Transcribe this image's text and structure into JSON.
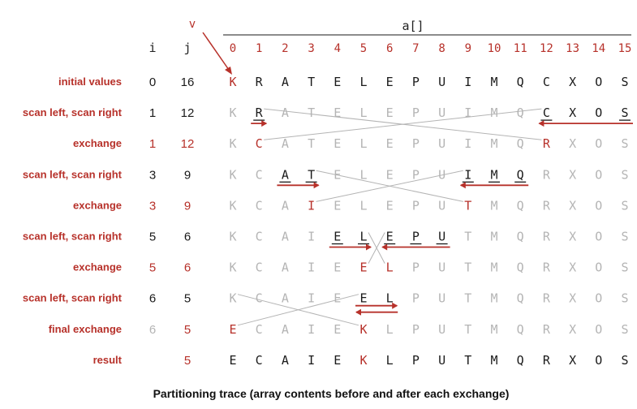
{
  "header": {
    "array_name": "a[]",
    "v_label": "v",
    "i_label": "i",
    "j_label": "j",
    "indices": [
      "0",
      "1",
      "2",
      "3",
      "4",
      "5",
      "6",
      "7",
      "8",
      "9",
      "10",
      "11",
      "12",
      "13",
      "14",
      "15"
    ]
  },
  "rows": [
    {
      "label": "initial values",
      "i": "0",
      "j": "16",
      "ij_color": "black",
      "cells": [
        "K",
        "R",
        "A",
        "T",
        "E",
        "L",
        "E",
        "P",
        "U",
        "I",
        "M",
        "Q",
        "C",
        "X",
        "O",
        "S"
      ],
      "styles": [
        "r",
        "b",
        "b",
        "b",
        "b",
        "b",
        "b",
        "b",
        "b",
        "b",
        "b",
        "b",
        "b",
        "b",
        "b",
        "b"
      ]
    },
    {
      "label": "scan left, scan right",
      "i": "1",
      "j": "12",
      "ij_color": "black",
      "cells": [
        "K",
        "R",
        "A",
        "T",
        "E",
        "L",
        "E",
        "P",
        "U",
        "I",
        "M",
        "Q",
        "C",
        "X",
        "O",
        "S"
      ],
      "styles": [
        "g",
        "bu",
        "g",
        "g",
        "g",
        "g",
        "g",
        "g",
        "g",
        "g",
        "g",
        "g",
        "bu",
        "b",
        "b",
        "bu"
      ]
    },
    {
      "label": "exchange",
      "i": "1",
      "j": "12",
      "ij_color": "red",
      "cells": [
        "K",
        "C",
        "A",
        "T",
        "E",
        "L",
        "E",
        "P",
        "U",
        "I",
        "M",
        "Q",
        "R",
        "X",
        "O",
        "S"
      ],
      "styles": [
        "g",
        "r",
        "g",
        "g",
        "g",
        "g",
        "g",
        "g",
        "g",
        "g",
        "g",
        "g",
        "r",
        "g",
        "g",
        "g"
      ]
    },
    {
      "label": "scan left, scan right",
      "i": "3",
      "j": "9",
      "ij_color": "black",
      "cells": [
        "K",
        "C",
        "A",
        "T",
        "E",
        "L",
        "E",
        "P",
        "U",
        "I",
        "M",
        "Q",
        "R",
        "X",
        "O",
        "S"
      ],
      "styles": [
        "g",
        "g",
        "bu",
        "bu",
        "g",
        "g",
        "g",
        "g",
        "g",
        "bu",
        "bu",
        "bu",
        "g",
        "g",
        "g",
        "g"
      ]
    },
    {
      "label": "exchange",
      "i": "3",
      "j": "9",
      "ij_color": "red",
      "cells": [
        "K",
        "C",
        "A",
        "I",
        "E",
        "L",
        "E",
        "P",
        "U",
        "T",
        "M",
        "Q",
        "R",
        "X",
        "O",
        "S"
      ],
      "styles": [
        "g",
        "g",
        "g",
        "r",
        "g",
        "g",
        "g",
        "g",
        "g",
        "r",
        "g",
        "g",
        "g",
        "g",
        "g",
        "g"
      ]
    },
    {
      "label": "scan left, scan right",
      "i": "5",
      "j": "6",
      "ij_color": "black",
      "cells": [
        "K",
        "C",
        "A",
        "I",
        "E",
        "L",
        "E",
        "P",
        "U",
        "T",
        "M",
        "Q",
        "R",
        "X",
        "O",
        "S"
      ],
      "styles": [
        "g",
        "g",
        "g",
        "g",
        "bu",
        "bu",
        "bu",
        "bu",
        "bu",
        "g",
        "g",
        "g",
        "g",
        "g",
        "g",
        "g"
      ]
    },
    {
      "label": "exchange",
      "i": "5",
      "j": "6",
      "ij_color": "red",
      "cells": [
        "K",
        "C",
        "A",
        "I",
        "E",
        "E",
        "L",
        "P",
        "U",
        "T",
        "M",
        "Q",
        "R",
        "X",
        "O",
        "S"
      ],
      "styles": [
        "g",
        "g",
        "g",
        "g",
        "g",
        "r",
        "r",
        "g",
        "g",
        "g",
        "g",
        "g",
        "g",
        "g",
        "g",
        "g"
      ]
    },
    {
      "label": "scan left, scan right",
      "i": "6",
      "j": "5",
      "ij_color": "black",
      "cells": [
        "K",
        "C",
        "A",
        "I",
        "E",
        "E",
        "L",
        "P",
        "U",
        "T",
        "M",
        "Q",
        "R",
        "X",
        "O",
        "S"
      ],
      "styles": [
        "g",
        "g",
        "g",
        "g",
        "g",
        "bu",
        "bu",
        "g",
        "g",
        "g",
        "g",
        "g",
        "g",
        "g",
        "g",
        "g"
      ]
    },
    {
      "label": "final exchange",
      "i": "6",
      "j": "5",
      "ij_color": "gray_red",
      "cells": [
        "E",
        "C",
        "A",
        "I",
        "E",
        "K",
        "L",
        "P",
        "U",
        "T",
        "M",
        "Q",
        "R",
        "X",
        "O",
        "S"
      ],
      "styles": [
        "r",
        "g",
        "g",
        "g",
        "g",
        "r",
        "g",
        "g",
        "g",
        "g",
        "g",
        "g",
        "g",
        "g",
        "g",
        "g"
      ]
    },
    {
      "label": "result",
      "i": "",
      "j": "5",
      "ij_color": "red",
      "cells": [
        "E",
        "C",
        "A",
        "I",
        "E",
        "K",
        "L",
        "P",
        "U",
        "T",
        "M",
        "Q",
        "R",
        "X",
        "O",
        "S"
      ],
      "styles": [
        "b",
        "b",
        "b",
        "b",
        "b",
        "r",
        "b",
        "b",
        "b",
        "b",
        "b",
        "b",
        "b",
        "b",
        "b",
        "b"
      ]
    }
  ],
  "scans": [
    {
      "row": 1,
      "i_from": 1,
      "i_to": 1,
      "j_from": 15,
      "j_to": 12
    },
    {
      "row": 3,
      "i_from": 2,
      "i_to": 3,
      "j_from": 11,
      "j_to": 9
    },
    {
      "row": 5,
      "i_from": 4,
      "i_to": 5,
      "j_from": 8,
      "j_to": 6
    },
    {
      "row": 7,
      "i_from": 5,
      "i_to": 6,
      "j_from": 6,
      "j_to": 5
    }
  ],
  "swaps": [
    {
      "row": 1,
      "a": 1,
      "b": 12
    },
    {
      "row": 3,
      "a": 3,
      "b": 9
    },
    {
      "row": 5,
      "a": 5,
      "b": 6
    },
    {
      "row": 7,
      "a": 0,
      "b": 5
    }
  ],
  "colors": {
    "red": "#b7312a",
    "black": "#1a1a1a",
    "gray": "#b4b4b4"
  },
  "caption": "Partitioning trace (array contents before and after each exchange)"
}
